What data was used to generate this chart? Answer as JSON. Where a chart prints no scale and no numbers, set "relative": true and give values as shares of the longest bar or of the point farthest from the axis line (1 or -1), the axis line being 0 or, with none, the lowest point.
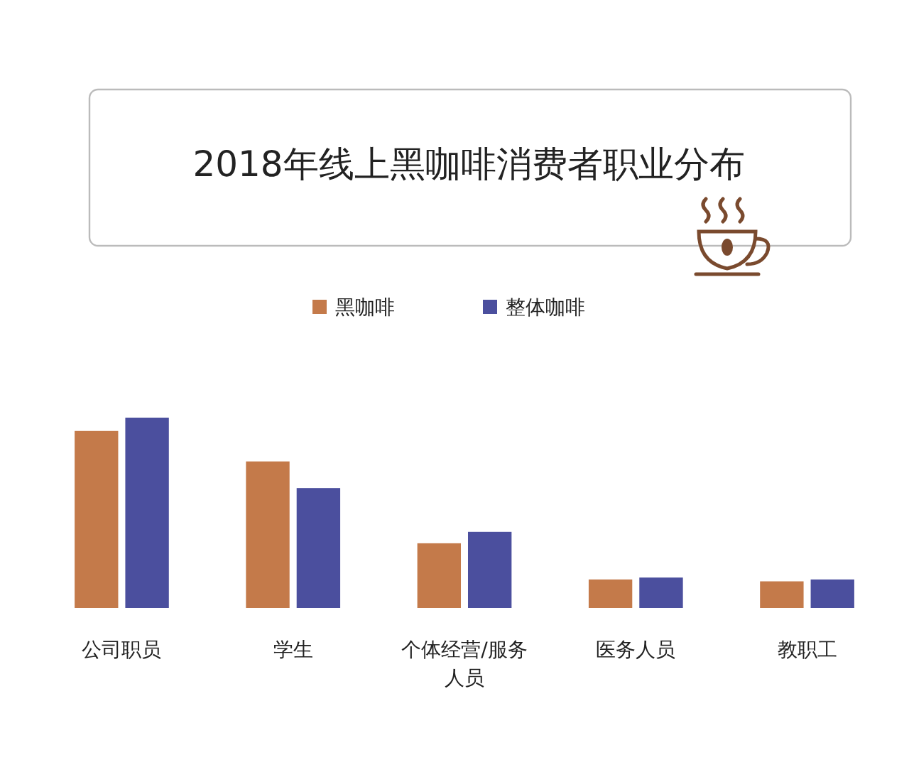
{
  "chart_data": {
    "type": "bar",
    "title": "2018年线上黑咖啡消费者职业分布",
    "relative": true,
    "legend": "top",
    "grid": false,
    "categories": [
      "公司职员",
      "学生",
      "个体经营/服务人员",
      "医务人员",
      "教职工"
    ],
    "series": [
      {
        "name": "黑咖啡",
        "color": "#c47a4a",
        "values": [
          0.93,
          0.77,
          0.34,
          0.15,
          0.14
        ]
      },
      {
        "name": "整体咖啡",
        "color": "#4b4f9e",
        "values": [
          1,
          0.63,
          0.4,
          0.16,
          0.15
        ]
      }
    ]
  }
}
